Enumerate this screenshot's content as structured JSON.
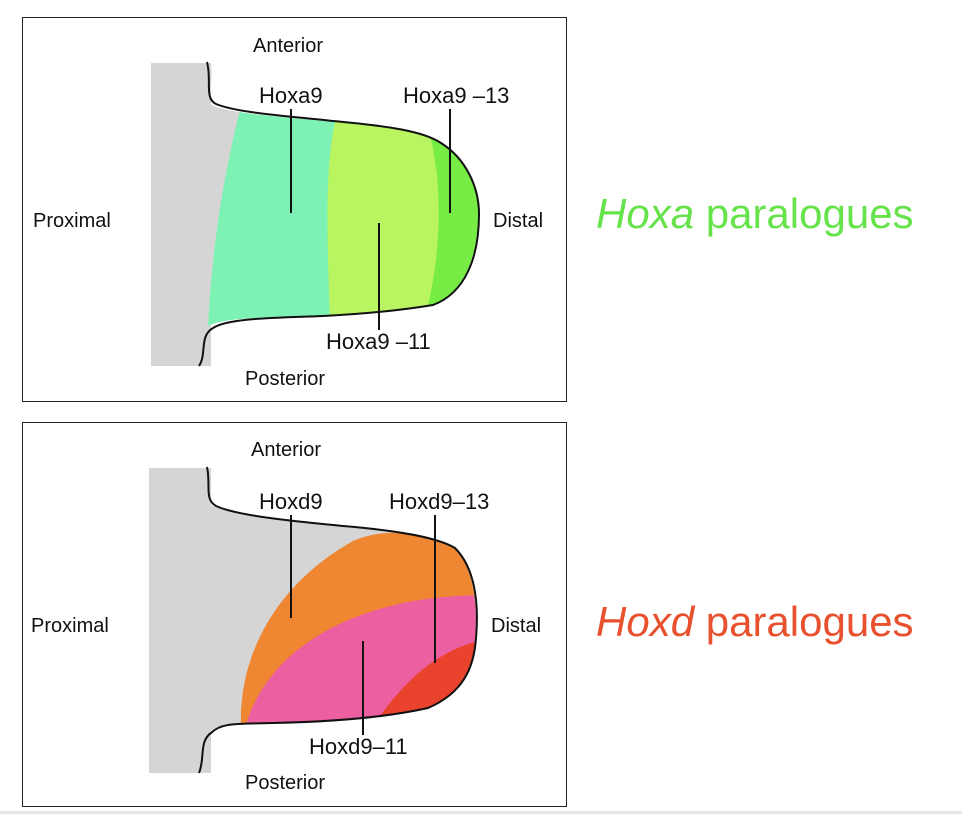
{
  "colors": {
    "hoxa_title": "#66e34a",
    "hoxd_title": "#e8502e",
    "hoxa9": "#7df2b4",
    "hoxa9_11": "#b9f560",
    "hoxa9_13": "#76ec44",
    "hoxd9": "#ef8632",
    "hoxd9_11": "#ec5fa0",
    "hoxd9_13": "#e9432d",
    "body": "#d5d5d5"
  },
  "hoxa_panel": {
    "anterior": "Anterior",
    "posterior": "Posterior",
    "proximal": "Proximal",
    "distal": "Distal",
    "gene_a": "Hoxa9",
    "gene_b": "Hoxa9 –13",
    "gene_c": "Hoxa9 –11"
  },
  "hoxd_panel": {
    "anterior": "Anterior",
    "posterior": "Posterior",
    "proximal": "Proximal",
    "distal": "Distal",
    "gene_a": "Hoxd9",
    "gene_b": "Hoxd9–13",
    "gene_c": "Hoxd9–11"
  },
  "titles": {
    "hoxa_italic": "Hoxa",
    "hoxa_rest": " paralogues",
    "hoxd_italic": "Hoxd",
    "hoxd_rest": " paralogues"
  }
}
